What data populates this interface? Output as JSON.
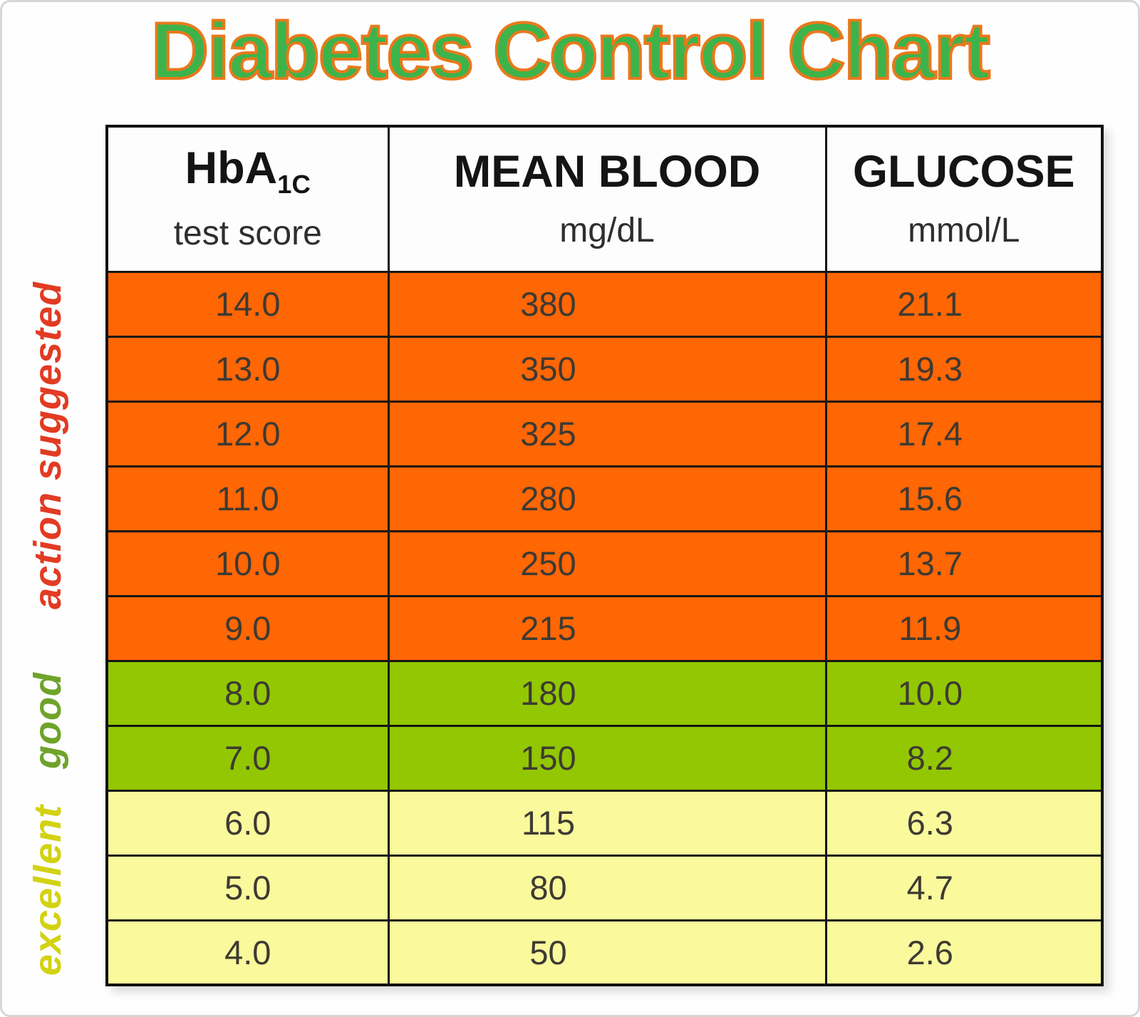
{
  "title": "Diabetes Control Chart",
  "title_fill": "#3cb44b",
  "title_stroke": "#e8791d",
  "table": {
    "headers": [
      {
        "main": "HbA",
        "sub": "1C",
        "unit": "test score"
      },
      {
        "main": "MEAN BLOOD",
        "sub": "",
        "unit": "mg/dL"
      },
      {
        "main": "GLUCOSE",
        "sub": "",
        "unit": "mmol/L"
      }
    ],
    "rows": [
      {
        "zone": "action",
        "hba1c": "14.0",
        "mg_dl": "380",
        "mmol_l": "21.1"
      },
      {
        "zone": "action",
        "hba1c": "13.0",
        "mg_dl": "350",
        "mmol_l": "19.3"
      },
      {
        "zone": "action",
        "hba1c": "12.0",
        "mg_dl": "325",
        "mmol_l": "17.4"
      },
      {
        "zone": "action",
        "hba1c": "11.0",
        "mg_dl": "280",
        "mmol_l": "15.6"
      },
      {
        "zone": "action",
        "hba1c": "10.0",
        "mg_dl": "250",
        "mmol_l": "13.7"
      },
      {
        "zone": "action",
        "hba1c": "9.0",
        "mg_dl": "215",
        "mmol_l": "11.9"
      },
      {
        "zone": "good",
        "hba1c": "8.0",
        "mg_dl": "180",
        "mmol_l": "10.0"
      },
      {
        "zone": "good",
        "hba1c": "7.0",
        "mg_dl": "150",
        "mmol_l": "8.2"
      },
      {
        "zone": "excellent",
        "hba1c": "6.0",
        "mg_dl": "115",
        "mmol_l": "6.3"
      },
      {
        "zone": "excellent",
        "hba1c": "5.0",
        "mg_dl": "80",
        "mmol_l": "4.7"
      },
      {
        "zone": "excellent",
        "hba1c": "4.0",
        "mg_dl": "50",
        "mmol_l": "2.6"
      }
    ]
  },
  "zones": [
    {
      "key": "action",
      "label": "action suggested",
      "label_color": "#e23b23",
      "row_color": "#ff6604"
    },
    {
      "key": "good",
      "label": "good",
      "label_color": "#6fa32a",
      "row_color": "#92c702"
    },
    {
      "key": "excellent",
      "label": "excellent",
      "label_color": "#d3d211",
      "row_color": "#faf99c"
    }
  ],
  "chart_data": {
    "type": "table",
    "title": "Diabetes Control Chart",
    "columns": [
      "HbA1C test score",
      "MEAN BLOOD mg/dL",
      "GLUCOSE mmol/L"
    ],
    "rows": [
      [
        14.0,
        380,
        21.1
      ],
      [
        13.0,
        350,
        19.3
      ],
      [
        12.0,
        325,
        17.4
      ],
      [
        11.0,
        280,
        15.6
      ],
      [
        10.0,
        250,
        13.7
      ],
      [
        9.0,
        215,
        11.9
      ],
      [
        8.0,
        180,
        10.0
      ],
      [
        7.0,
        150,
        8.2
      ],
      [
        6.0,
        115,
        6.3
      ],
      [
        5.0,
        80,
        4.7
      ],
      [
        4.0,
        50,
        2.6
      ]
    ],
    "row_zones": [
      "action suggested",
      "action suggested",
      "action suggested",
      "action suggested",
      "action suggested",
      "action suggested",
      "good",
      "good",
      "excellent",
      "excellent",
      "excellent"
    ],
    "zone_colors": {
      "action suggested": "#ff6604",
      "good": "#92c702",
      "excellent": "#faf99c"
    }
  }
}
